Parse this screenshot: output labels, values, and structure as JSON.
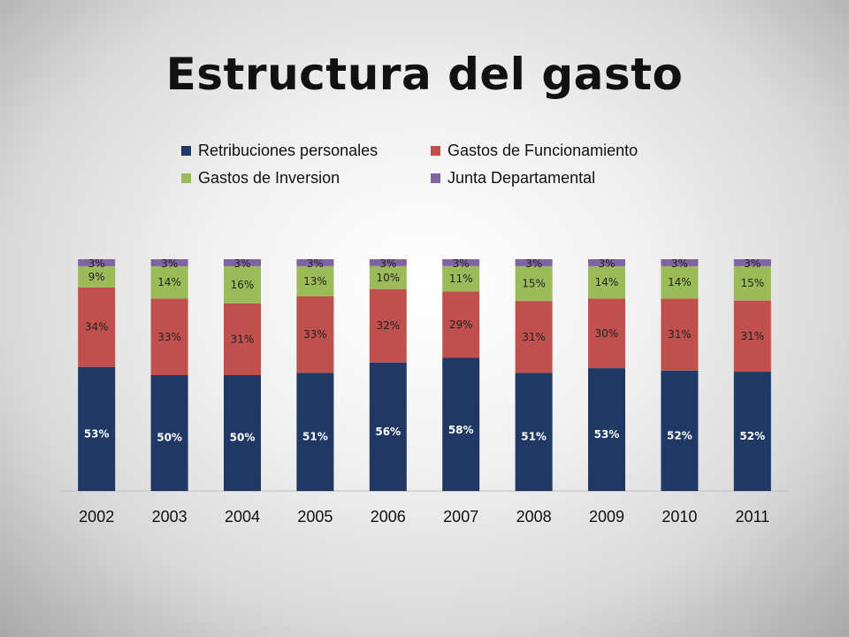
{
  "title": "Estructura del gasto",
  "chart_data": {
    "type": "bar",
    "stacked": true,
    "percent_stacked": true,
    "title": "",
    "xlabel": "",
    "ylabel": "",
    "categories": [
      "2002",
      "2003",
      "2004",
      "2005",
      "2006",
      "2007",
      "2008",
      "2009",
      "2010",
      "2011"
    ],
    "legend_position": "top",
    "grid": false,
    "series": [
      {
        "name": "Retribuciones personales",
        "color": "#1f3864",
        "values": [
          53,
          50,
          50,
          51,
          56,
          58,
          51,
          53,
          52,
          52
        ],
        "labels": [
          "53%",
          "50%",
          "50%",
          "51%",
          "56%",
          "58%",
          "51%",
          "53%",
          "52%",
          "52%"
        ]
      },
      {
        "name": "Gastos de Funcionamiento",
        "color": "#c0504d",
        "values": [
          34,
          33,
          31,
          33,
          32,
          29,
          31,
          30,
          31,
          31
        ],
        "labels": [
          "34%",
          "33%",
          "31%",
          "33%",
          "32%",
          "29%",
          "31%",
          "30%",
          "31%",
          "31%"
        ]
      },
      {
        "name": "Gastos de Inversion",
        "color": "#9bbb59",
        "values": [
          9,
          14,
          16,
          13,
          10,
          11,
          15,
          14,
          14,
          15
        ],
        "labels": [
          "9%",
          "14%",
          "16%",
          "13%",
          "10%",
          "11%",
          "15%",
          "14%",
          "14%",
          "15%"
        ]
      },
      {
        "name": "Junta Departamental",
        "color": "#8064a2",
        "values": [
          3,
          3,
          3,
          3,
          3,
          3,
          3,
          3,
          3,
          3
        ],
        "labels": [
          "3%",
          "3%",
          "3%",
          "3%",
          "3%",
          "3%",
          "3%",
          "3%",
          "3%",
          "3%"
        ]
      }
    ]
  }
}
